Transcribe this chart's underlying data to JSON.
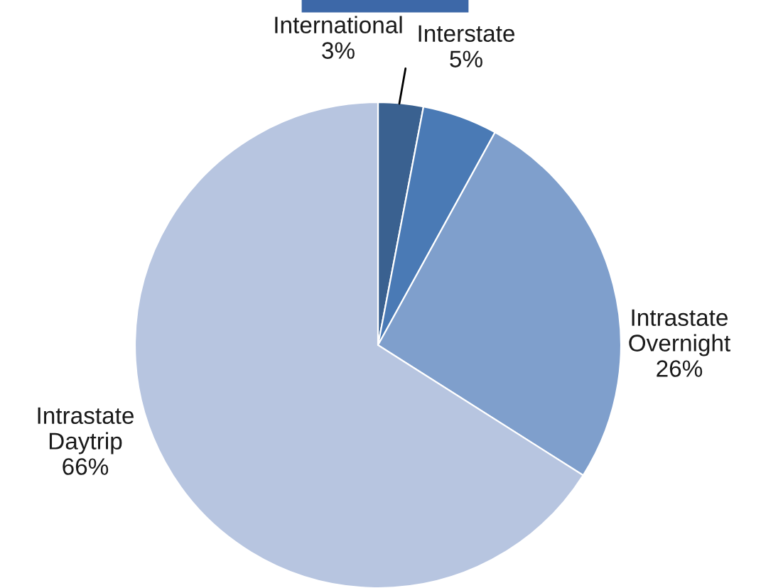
{
  "chart_data": {
    "type": "pie",
    "categories": [
      "International",
      "Interstate",
      "Intrastate Overnight",
      "Intrastate Daytrip"
    ],
    "values": [
      3,
      5,
      26,
      66
    ],
    "colors": [
      "#3a6190",
      "#4a7ab5",
      "#7f9fcc",
      "#b7c5e0"
    ],
    "value_labels": [
      "3%",
      "5%",
      "26%",
      "66%"
    ],
    "legend": false
  }
}
